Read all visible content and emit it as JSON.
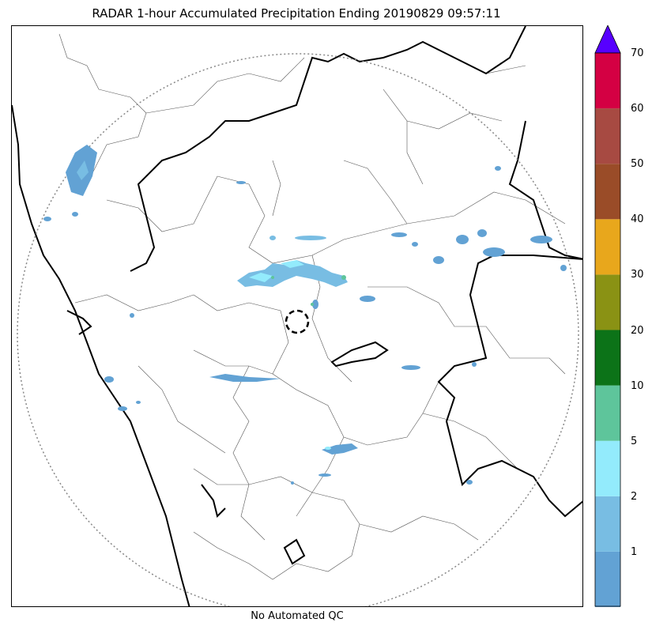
{
  "title": "RADAR 1-hour Accumulated Precipitation Ending 20190829 09:57:11",
  "footer": "No Automated QC",
  "colorbar": {
    "levels": [
      {
        "label": "",
        "color": "#62a2d4"
      },
      {
        "label": "1",
        "color": "#78bde3"
      },
      {
        "label": "2",
        "color": "#93ebfc"
      },
      {
        "label": "5",
        "color": "#5ec59b"
      },
      {
        "label": "10",
        "color": "#0c7318"
      },
      {
        "label": "20",
        "color": "#8a9214"
      },
      {
        "label": "30",
        "color": "#e8a71c"
      },
      {
        "label": "40",
        "color": "#9a4c28"
      },
      {
        "label": "50",
        "color": "#a74a42"
      },
      {
        "label": "60",
        "color": "#d40043"
      }
    ],
    "top_label": "70",
    "extend_color": "#5700ff"
  },
  "map": {
    "range_ring": "dotted",
    "radar_site_marker": "dashed-circle"
  }
}
